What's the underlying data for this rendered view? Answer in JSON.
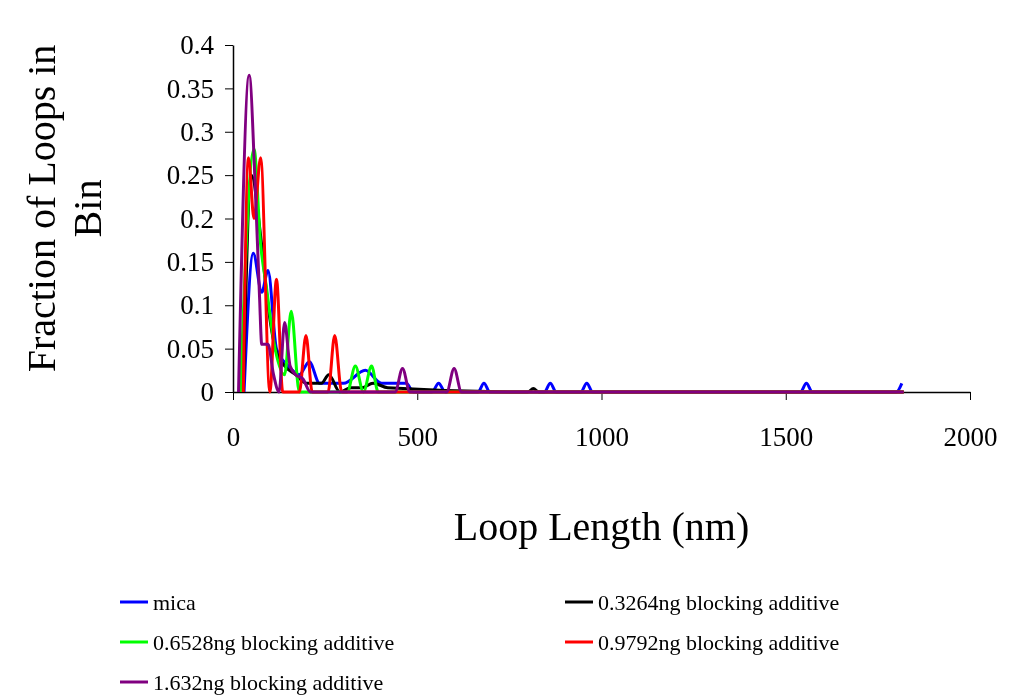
{
  "chart_data": {
    "type": "line",
    "xlabel": "Loop Length (nm)",
    "ylabel": "Fraction of Loops in Bin",
    "xlim": [
      0,
      2000
    ],
    "xticks": [
      0,
      500,
      1000,
      1500,
      2000
    ],
    "ylim": [
      0,
      0.4
    ],
    "yticks": [
      0,
      0.05,
      0.1,
      0.15,
      0.2,
      0.25,
      0.3,
      0.35,
      0.4
    ],
    "grid": false,
    "legend": "bottom",
    "marker": "none",
    "line_style": "solid",
    "series": [
      {
        "name": "mica",
        "color": "#0000ff",
        "x": [
          30,
          55,
          78,
          95,
          118,
          150,
          180,
          207,
          235,
          300,
          359,
          403,
          440,
          470,
          490,
          540,
          558,
          576,
          665,
          681,
          697,
          845,
          861,
          877,
          944,
          960,
          976,
          1540,
          1556,
          1572,
          1800,
          1815
        ],
        "values": [
          0,
          0.16,
          0.115,
          0.14,
          0.05,
          0.03,
          0.02,
          0.035,
          0.01,
          0.01,
          0.025,
          0.01,
          0.01,
          0.01,
          0,
          0,
          0.01,
          0,
          0,
          0.01,
          0,
          0,
          0.01,
          0,
          0,
          0.01,
          0,
          0,
          0.01,
          0,
          0,
          0.01
        ]
      },
      {
        "name": "0.3264ng blocking additive",
        "color": "#000000",
        "x": [
          28,
          50,
          75,
          95,
          115,
          140,
          170,
          200,
          240,
          260,
          290,
          320,
          350,
          380,
          420,
          800,
          815,
          830,
          1820
        ],
        "values": [
          0,
          0.25,
          0.18,
          0.1,
          0.05,
          0.03,
          0.02,
          0.01,
          0.01,
          0.02,
          0,
          0.005,
          0.005,
          0.01,
          0.005,
          0,
          0.004,
          0,
          0
        ]
      },
      {
        "name": "0.6528ng blocking additive",
        "color": "#00ff00",
        "x": [
          20,
          57,
          75,
          91,
          110,
          140,
          158,
          180,
          310,
          332,
          354,
          376,
          394,
          1820
        ],
        "values": [
          0,
          0.28,
          0.17,
          0.12,
          0.06,
          0.02,
          0.093,
          0,
          0,
          0.03,
          0,
          0.03,
          0,
          0
        ]
      },
      {
        "name": "0.9792ng blocking additive",
        "color": "#ff0000",
        "x": [
          28,
          42,
          57,
          75,
          100,
          118,
          135,
          180,
          198,
          215,
          258,
          276,
          295,
          1820
        ],
        "values": [
          0,
          0.27,
          0.2,
          0.27,
          0,
          0.13,
          0,
          0,
          0.065,
          0,
          0,
          0.065,
          0,
          0
        ]
      },
      {
        "name": "1.632ng blocking additive",
        "color": "#800080",
        "x": [
          15,
          44,
          60,
          72,
          78,
          95,
          110,
          125,
          140,
          155,
          170,
          190,
          210,
          440,
          460,
          480,
          580,
          600,
          620,
          1820
        ],
        "values": [
          0,
          0.365,
          0.24,
          0.11,
          0.055,
          0.055,
          0.02,
          0,
          0.08,
          0.03,
          0.02,
          0.015,
          0,
          0,
          0.027,
          0,
          0,
          0.027,
          0,
          0
        ]
      }
    ]
  }
}
